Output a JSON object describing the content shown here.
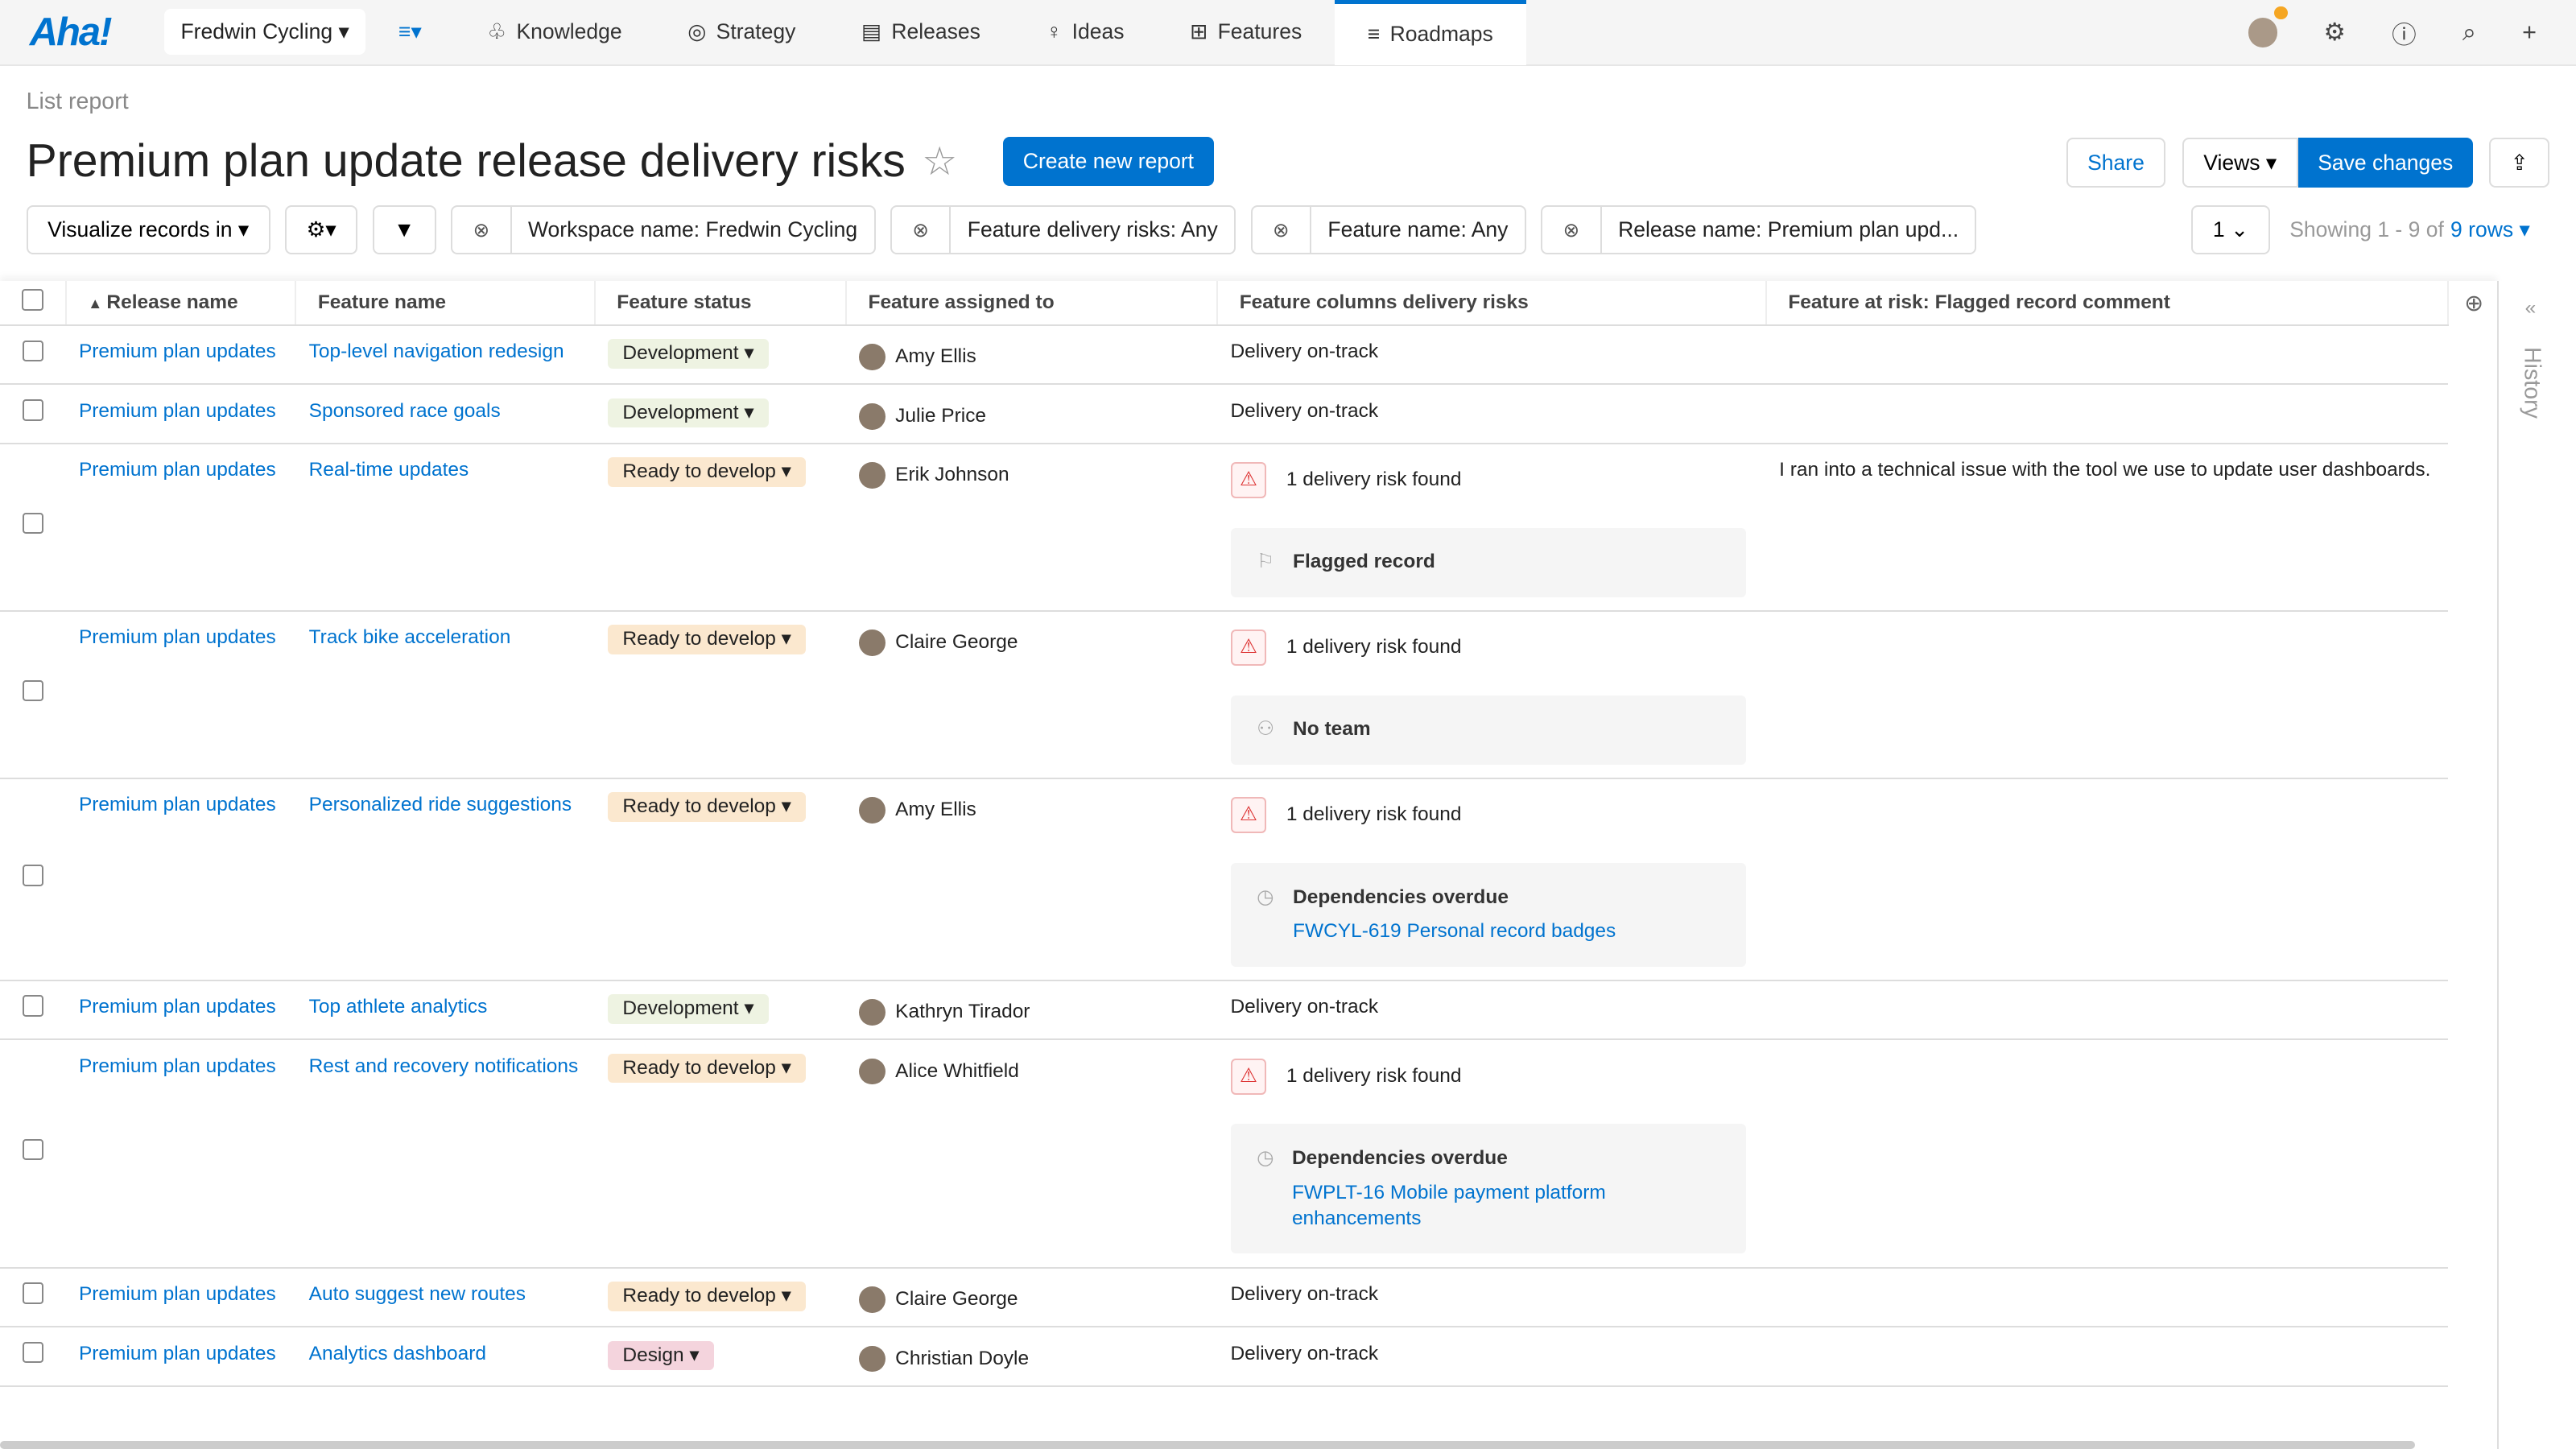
{
  "nav": {
    "logo": "Aha!",
    "workspace": "Fredwin Cycling",
    "items": [
      {
        "label": "Knowledge",
        "icon": "book-icon"
      },
      {
        "label": "Strategy",
        "icon": "target-icon"
      },
      {
        "label": "Releases",
        "icon": "calendar-icon"
      },
      {
        "label": "Ideas",
        "icon": "lightbulb-icon"
      },
      {
        "label": "Features",
        "icon": "grid-icon"
      },
      {
        "label": "Roadmaps",
        "icon": "roadmap-icon",
        "active": true
      }
    ]
  },
  "page": {
    "breadcrumb": "List report",
    "title": "Premium plan update release delivery risks",
    "create": "Create new report",
    "share": "Share",
    "views": "Views",
    "save": "Save changes"
  },
  "filters": {
    "visualize": "Visualize records in",
    "f1": "Workspace name: Fredwin Cycling",
    "f2": "Feature delivery risks: Any",
    "f3": "Feature name: Any",
    "f4": "Release name: Premium plan upd...",
    "page": "1",
    "showing": "Showing 1 - 9 of",
    "rows": "9 rows"
  },
  "columns": [
    "Release name",
    "Feature name",
    "Feature status",
    "Feature assigned to",
    "Feature columns delivery risks",
    "Feature at risk: Flagged record comment"
  ],
  "history": "History",
  "rows": [
    {
      "release": "Premium plan updates",
      "feature": "Top-level navigation redesign",
      "status": "Development",
      "assignee": "Amy Ellis",
      "risk": "Delivery on-track"
    },
    {
      "release": "Premium plan updates",
      "feature": "Sponsored race goals",
      "status": "Development",
      "assignee": "Julie Price",
      "risk": "Delivery on-track"
    },
    {
      "release": "Premium plan updates",
      "feature": "Real-time updates",
      "status": "Ready to develop",
      "assignee": "Erik Johnson",
      "risk": "1 delivery risk found",
      "box": {
        "icon": "flag-icon",
        "title": "Flagged record"
      },
      "comment": "I ran into a technical issue with the tool we use to update user dashboards."
    },
    {
      "release": "Premium plan updates",
      "feature": "Track bike acceleration",
      "status": "Ready to develop",
      "assignee": "Claire George",
      "risk": "1 delivery risk found",
      "box": {
        "icon": "team-icon",
        "title": "No team"
      }
    },
    {
      "release": "Premium plan updates",
      "feature": "Personalized ride suggestions",
      "status": "Ready to develop",
      "assignee": "Amy Ellis",
      "risk": "1 delivery risk found",
      "box": {
        "icon": "clock-icon",
        "title": "Dependencies overdue",
        "link": "FWCYL-619 Personal record badges"
      }
    },
    {
      "release": "Premium plan updates",
      "feature": "Top athlete analytics",
      "status": "Development",
      "assignee": "Kathryn Tirador",
      "risk": "Delivery on-track"
    },
    {
      "release": "Premium plan updates",
      "feature": "Rest and recovery notifications",
      "status": "Ready to develop",
      "assignee": "Alice Whitfield",
      "risk": "1 delivery risk found",
      "box": {
        "icon": "clock-icon",
        "title": "Dependencies overdue",
        "link": "FWPLT-16 Mobile payment platform enhancements"
      }
    },
    {
      "release": "Premium plan updates",
      "feature": "Auto suggest new routes",
      "status": "Ready to develop",
      "assignee": "Claire George",
      "risk": "Delivery on-track"
    },
    {
      "release": "Premium plan updates",
      "feature": "Analytics dashboard",
      "status": "Design",
      "assignee": "Christian Doyle",
      "risk": "Delivery on-track"
    }
  ]
}
